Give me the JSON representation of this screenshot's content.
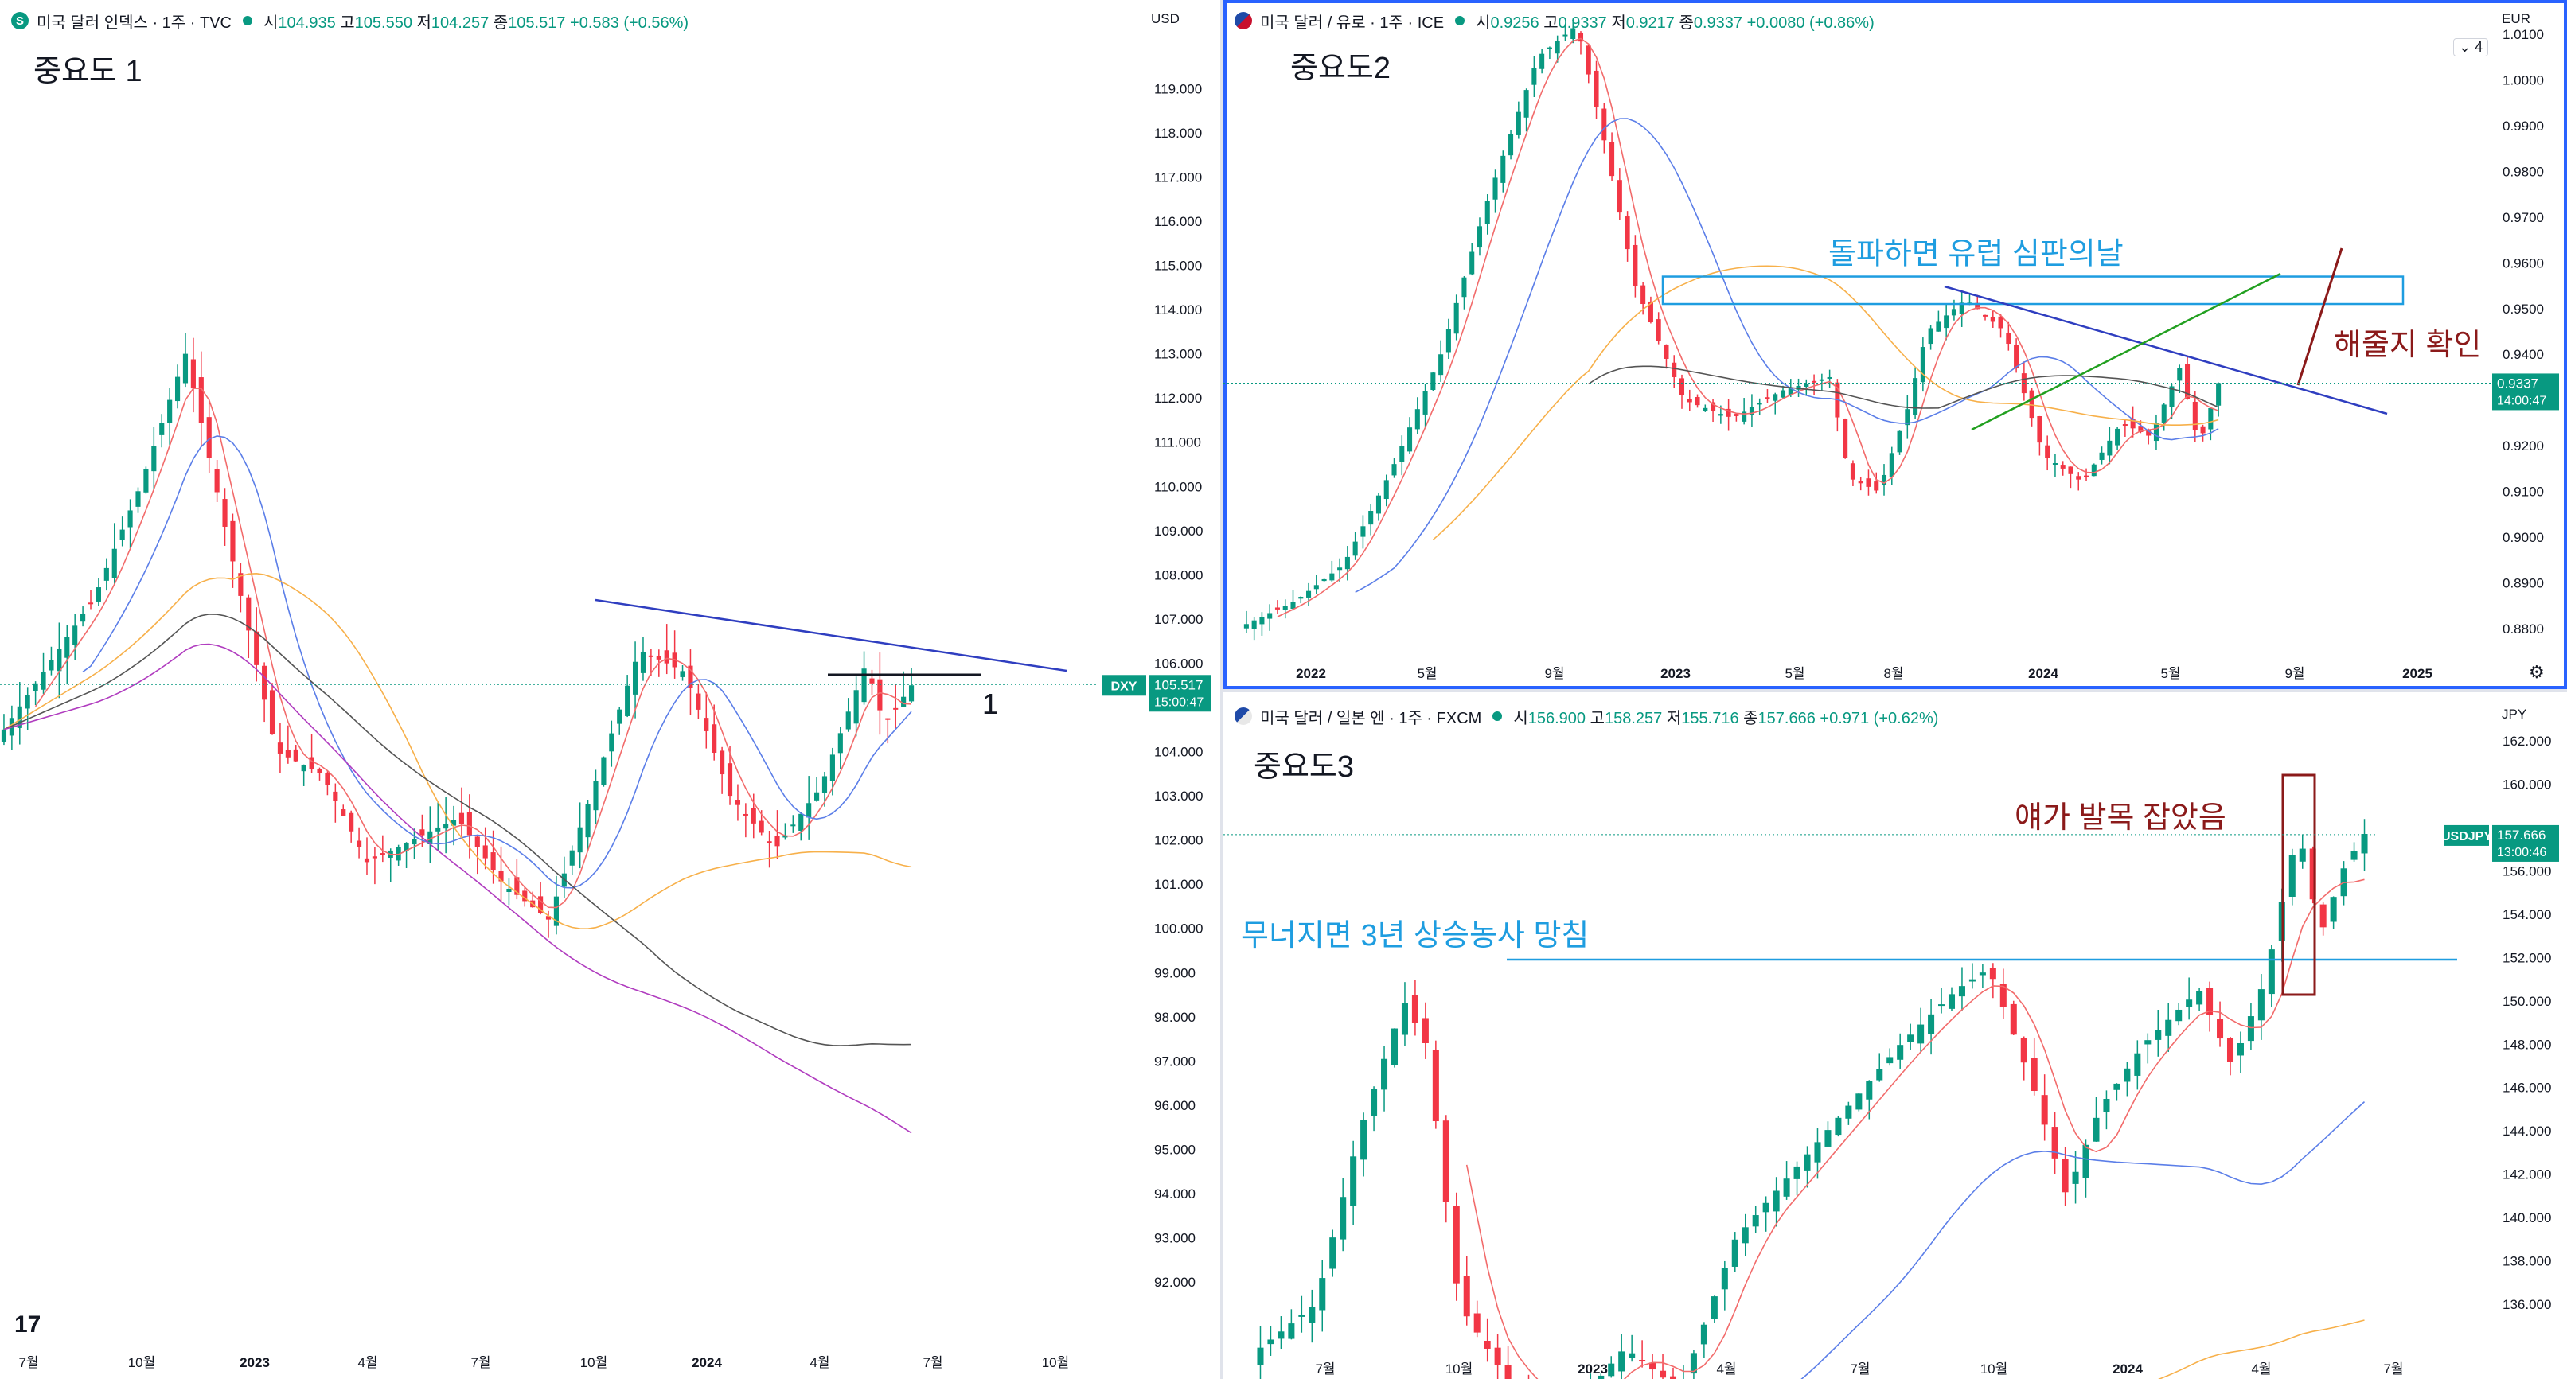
{
  "panel1": {
    "symbol": "미국 달러 인덱스 · 1주 · TVC",
    "icon": "S",
    "o_lbl": "시",
    "o": "104.935",
    "h_lbl": "고",
    "h": "105.550",
    "l_lbl": "저",
    "l": "104.257",
    "c_lbl": "종",
    "c": "105.517",
    "chg": "+0.583 (+0.56%)",
    "title": "중요도 1",
    "annotation": "1",
    "ticker": "DXY",
    "price": "105.517",
    "countdown": "15:00:47",
    "currency": "USD"
  },
  "panel2": {
    "symbol": "미국 달러 / 유로 · 1주 · ICE",
    "o_lbl": "시",
    "o": "0.9256",
    "h_lbl": "고",
    "h": "0.9337",
    "l_lbl": "저",
    "l": "0.9217",
    "c_lbl": "종",
    "c": "0.9337",
    "chg": "+0.0080 (+0.86%)",
    "title": "중요도2",
    "indicator_count": "4",
    "note_breakout": "돌파하면 유럽 심판의날",
    "note_check": "해줄지 확인",
    "price": "0.9337",
    "countdown": "14:00:47",
    "currency": "EUR"
  },
  "panel3": {
    "symbol": "미국 달러 / 일본 엔 · 1주 · FXCM",
    "o_lbl": "시",
    "o": "156.900",
    "h_lbl": "고",
    "h": "158.257",
    "l_lbl": "저",
    "l": "155.716",
    "c_lbl": "종",
    "c": "157.666",
    "chg": "+0.971 (+0.62%)",
    "title": "중요도3",
    "note_grab": "얘가 발목 잡았음",
    "note_break": "무너지면 3년 상승농사 망침",
    "ticker": "USDJPY",
    "price": "157.666",
    "countdown": "13:00:46",
    "currency": "JPY"
  },
  "colors": {
    "up": "#089981",
    "down": "#f23645",
    "trend_blue": "#2f3ec0",
    "box_blue": "#1e9de0",
    "green_line": "#22a020",
    "annot_red": "#8b1a1a",
    "ma_red": "#f26b6b",
    "ma_blue": "#5b7ee8",
    "ma_orange": "#f7b04a",
    "ma_gray": "#555555",
    "ma_purple": "#b03cbf"
  },
  "chart_data": [
    {
      "type": "candlestick",
      "name": "DXY",
      "x_ticks": [
        "7월",
        "10월",
        "2023",
        "4월",
        "7월",
        "10월",
        "2024",
        "4월",
        "7월",
        "10월"
      ],
      "y_ticks": [
        "119.000",
        "118.000",
        "117.000",
        "116.000",
        "115.000",
        "114.000",
        "113.000",
        "112.000",
        "111.000",
        "110.000",
        "109.000",
        "108.000",
        "107.000",
        "106.000",
        "104.000",
        "103.000",
        "102.000",
        "101.000",
        "100.000",
        "99.000",
        "98.000",
        "97.000",
        "96.000",
        "95.000",
        "94.000",
        "93.000",
        "92.000"
      ],
      "ylim": [
        91.3,
        119.6
      ],
      "last": 105.517
    },
    {
      "type": "candlestick",
      "name": "USDEUR",
      "x_ticks": [
        "2022",
        "5월",
        "9월",
        "2023",
        "5월",
        "8월",
        "2024",
        "5월",
        "9월",
        "2025"
      ],
      "y_ticks": [
        "1.0100",
        "1.0000",
        "0.9900",
        "0.9800",
        "0.9700",
        "0.9600",
        "0.9500",
        "0.9400",
        "0.9200",
        "0.9100",
        "0.9000",
        "0.8900",
        "0.8800"
      ],
      "ylim": [
        0.872,
        1.014
      ],
      "last": 0.9337,
      "breakout_box": [
        0.951,
        0.957
      ]
    },
    {
      "type": "candlestick",
      "name": "USDJPY",
      "x_ticks": [
        "7월",
        "10월",
        "2023",
        "4월",
        "7월",
        "10월",
        "2024",
        "4월",
        "7월"
      ],
      "y_ticks": [
        "162.000",
        "160.000",
        "156.000",
        "154.000",
        "152.000",
        "150.000",
        "148.000",
        "146.000",
        "144.000",
        "142.000",
        "140.000",
        "138.000",
        "136.000"
      ],
      "ylim": [
        133.4,
        163.5
      ],
      "last": 157.666,
      "support": 151.9
    }
  ]
}
